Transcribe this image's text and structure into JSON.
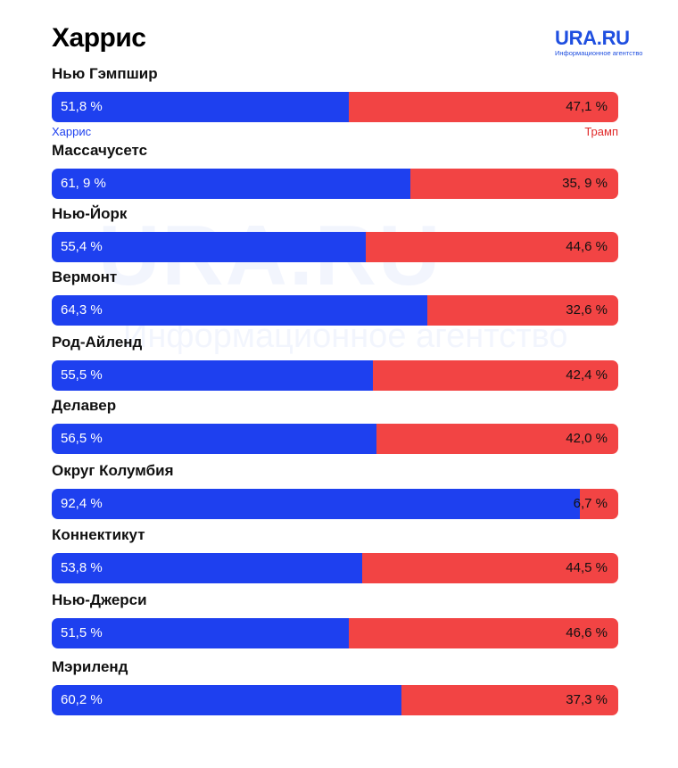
{
  "title": "Харрис",
  "logo": {
    "name": "URA.RU",
    "subtitle": "Информационное агентство"
  },
  "watermark": {
    "big": "URA.RU",
    "small": "Информационное агентство"
  },
  "legend": {
    "blue": "Харрис",
    "red": "Трамп"
  },
  "colors": {
    "blue": "#1e40ef",
    "red": "#f24444",
    "brand": "#1f4fe0"
  },
  "chart_data": {
    "type": "bar",
    "orientation": "horizontal-stacked",
    "title": "Харрис",
    "series": [
      {
        "name": "Харрис",
        "values": [
          51.8,
          61.9,
          55.4,
          64.3,
          55.5,
          56.5,
          92.4,
          53.8,
          51.5,
          60.2
        ]
      },
      {
        "name": "Трамп",
        "values": [
          47.1,
          35.9,
          44.6,
          32.6,
          42.4,
          42.0,
          6.7,
          44.5,
          46.6,
          37.3
        ]
      }
    ],
    "categories": [
      "Нью Гэмпшир",
      "Массачусетс",
      "Нью-Йорк",
      "Вермонт",
      "Род-Айленд",
      "Делавер",
      "Округ Колумбия",
      "Коннектикут",
      "Нью-Джерси",
      "Мэриленд"
    ],
    "labels_blue": [
      "51,8 %",
      "61, 9 %",
      "55,4 %",
      "64,3 %",
      "55,5 %",
      "56,5 %",
      "92,4 %",
      "53,8 %",
      "51,5 %",
      "60,2 %"
    ],
    "labels_red": [
      "47,1 %",
      "35, 9 %",
      "44,6 %",
      "32,6 %",
      "42,4 %",
      "42,0 %",
      "6,7 %",
      "44,5 %",
      "46,6 %",
      "37,3 %"
    ]
  }
}
